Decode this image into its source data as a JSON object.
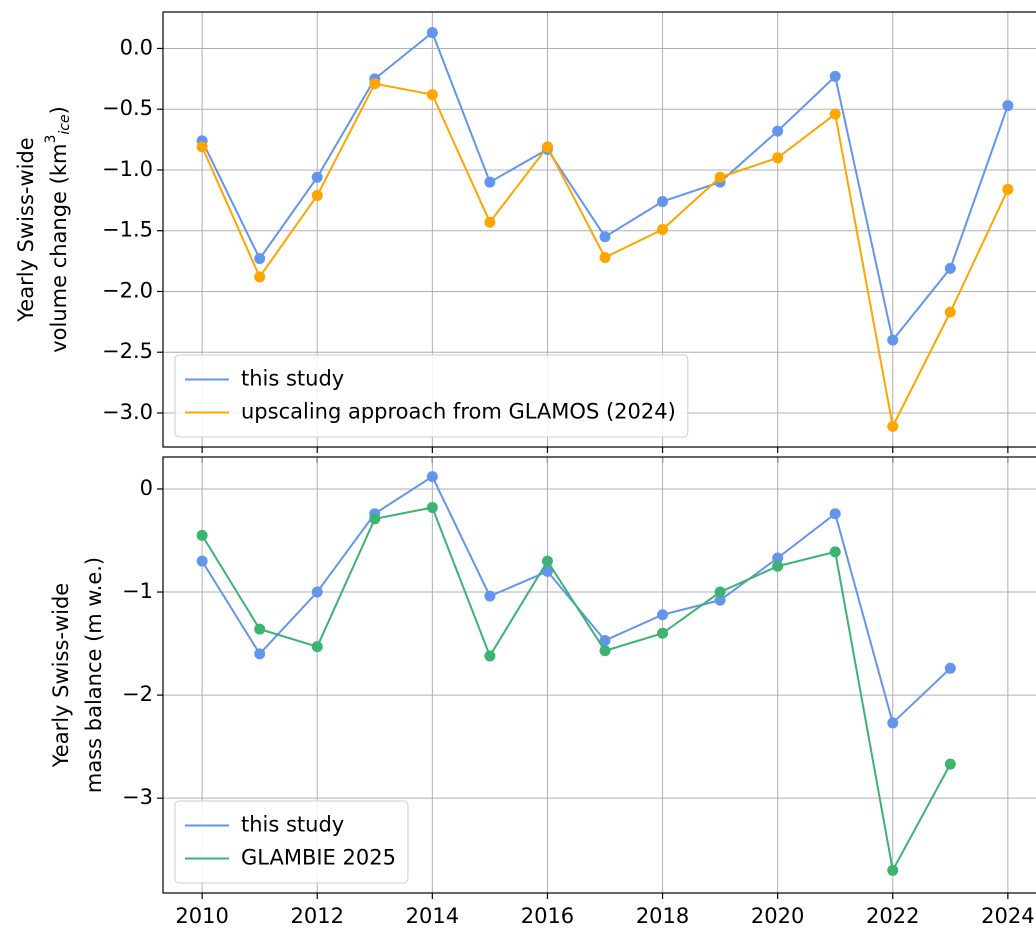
{
  "chart_data": [
    {
      "type": "line",
      "ylabel": [
        "Yearly Swiss-wide",
        "volume change (km",
        "3",
        "ice",
        ")"
      ],
      "x": [
        2010,
        2011,
        2012,
        2013,
        2014,
        2015,
        2016,
        2017,
        2018,
        2019,
        2020,
        2021,
        2022,
        2023,
        2024
      ],
      "series": [
        {
          "name": "this study",
          "color": "#6495ed",
          "values": [
            -0.76,
            -1.73,
            -1.06,
            -0.25,
            0.13,
            -1.1,
            -0.83,
            -1.55,
            -1.26,
            -1.1,
            -0.68,
            -0.23,
            -2.4,
            -1.81,
            -0.47
          ]
        },
        {
          "name": "upscaling approach from GLAMOS (2024)",
          "color": "#ffa500",
          "values": [
            -0.81,
            -1.88,
            -1.21,
            -0.29,
            -0.38,
            -1.43,
            -0.81,
            -1.72,
            -1.49,
            -1.06,
            -0.9,
            -0.54,
            -3.11,
            -2.17,
            -1.16
          ]
        }
      ],
      "xlim": [
        2009.32,
        2024.68
      ],
      "xticks": [
        2010,
        2012,
        2014,
        2016,
        2018,
        2020,
        2022,
        2024
      ],
      "show_xtick_labels": false,
      "ylim": [
        -3.28,
        0.3
      ],
      "yticks": [
        {
          "value": 0.0,
          "label": "0.0"
        },
        {
          "value": -0.5,
          "label": "−0.5"
        },
        {
          "value": -1.0,
          "label": "−1.0"
        },
        {
          "value": -1.5,
          "label": "−1.5"
        },
        {
          "value": -2.0,
          "label": "−2.0"
        },
        {
          "value": -2.5,
          "label": "−2.5"
        },
        {
          "value": -3.0,
          "label": "−3.0"
        }
      ],
      "grid": true,
      "legend": "lower left"
    },
    {
      "type": "line",
      "ylabel": [
        "Yearly Swiss-wide",
        "mass balance (m w.e.)"
      ],
      "x": [
        2010,
        2011,
        2012,
        2013,
        2014,
        2015,
        2016,
        2017,
        2018,
        2019,
        2020,
        2021,
        2022,
        2023,
        2024
      ],
      "series": [
        {
          "name": "this study",
          "color": "#6495ed",
          "values": [
            -0.7,
            -1.6,
            -1.0,
            -0.24,
            0.12,
            -1.04,
            -0.8,
            -1.47,
            -1.22,
            -1.08,
            -0.67,
            -0.24,
            -2.27,
            -1.74,
            null
          ]
        },
        {
          "name": "GLAMBIE 2025",
          "color": "#3cb371",
          "values": [
            -0.45,
            -1.36,
            -1.53,
            -0.29,
            -0.18,
            -1.62,
            -0.7,
            -1.57,
            -1.4,
            -1.0,
            -0.75,
            -0.61,
            -3.7,
            -2.67,
            null
          ]
        }
      ],
      "xlim": [
        2009.32,
        2024.68
      ],
      "xticks": [
        2010,
        2012,
        2014,
        2016,
        2018,
        2020,
        2022,
        2024
      ],
      "show_xtick_labels": true,
      "ylim": [
        -3.92,
        0.31
      ],
      "yticks": [
        0,
        {
          "value": -1,
          "label": "−1"
        },
        {
          "value": -2,
          "label": "−2"
        },
        {
          "value": -3,
          "label": "−3"
        }
      ],
      "grid": true,
      "legend": "lower left"
    }
  ]
}
